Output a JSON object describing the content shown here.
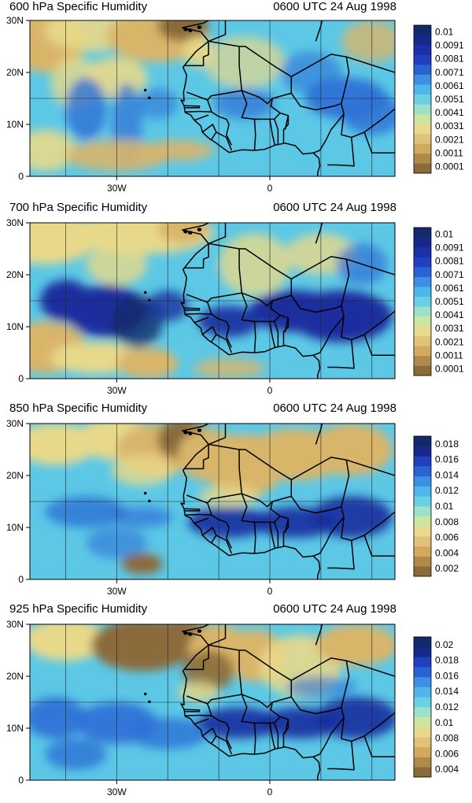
{
  "panels": [
    {
      "title": "600 hPa Specific Humidity",
      "time": "0600 UTC 24 Aug 1998",
      "lat_labels": [
        "30N",
        "20N",
        "10N",
        "0"
      ],
      "lon_labels": [
        "30W",
        "0"
      ],
      "colorbar_labels": [
        "0.01",
        "0.0091",
        "0.0081",
        "0.0071",
        "0.0061",
        "0.0051",
        "0.0041",
        "0.0031",
        "0.0021",
        "0.0011",
        "0.0001"
      ]
    },
    {
      "title": "700 hPa Specific Humidity",
      "time": "0600 UTC 24 Aug 1998",
      "lat_labels": [
        "30N",
        "20N",
        "10N",
        "0"
      ],
      "lon_labels": [
        "30W",
        "0"
      ],
      "colorbar_labels": [
        "0.01",
        "0.0091",
        "0.0081",
        "0.0071",
        "0.0061",
        "0.0051",
        "0.0041",
        "0.0031",
        "0.0021",
        "0.0011",
        "0.0001"
      ]
    },
    {
      "title": "850 hPa Specific Humidity",
      "time": "0600 UTC 24 Aug 1998",
      "lat_labels": [
        "30N",
        "20N",
        "10N",
        "0"
      ],
      "lon_labels": [
        "30W",
        "0"
      ],
      "colorbar_labels": [
        "0.018",
        "0.016",
        "0.014",
        "0.012",
        "0.01",
        "0.008",
        "0.006",
        "0.004",
        "0.002"
      ]
    },
    {
      "title": "925 hPa Specific Humidity",
      "time": "0600 UTC 24 Aug 1998",
      "lat_labels": [
        "30N",
        "20N",
        "10N",
        "0"
      ],
      "lon_labels": [
        "30W",
        "0"
      ],
      "colorbar_labels": [
        "0.02",
        "0.018",
        "0.016",
        "0.014",
        "0.012",
        "0.01",
        "0.008",
        "0.006",
        "0.004"
      ]
    }
  ],
  "colors": {
    "dry": "#8b6b3a",
    "tan": "#d9b56a",
    "pale": "#e8d98a",
    "cyan": "#5cc8e6",
    "blue": "#2d6fd6",
    "deep": "#1a2f9e",
    "navy": "#122a6a"
  }
}
